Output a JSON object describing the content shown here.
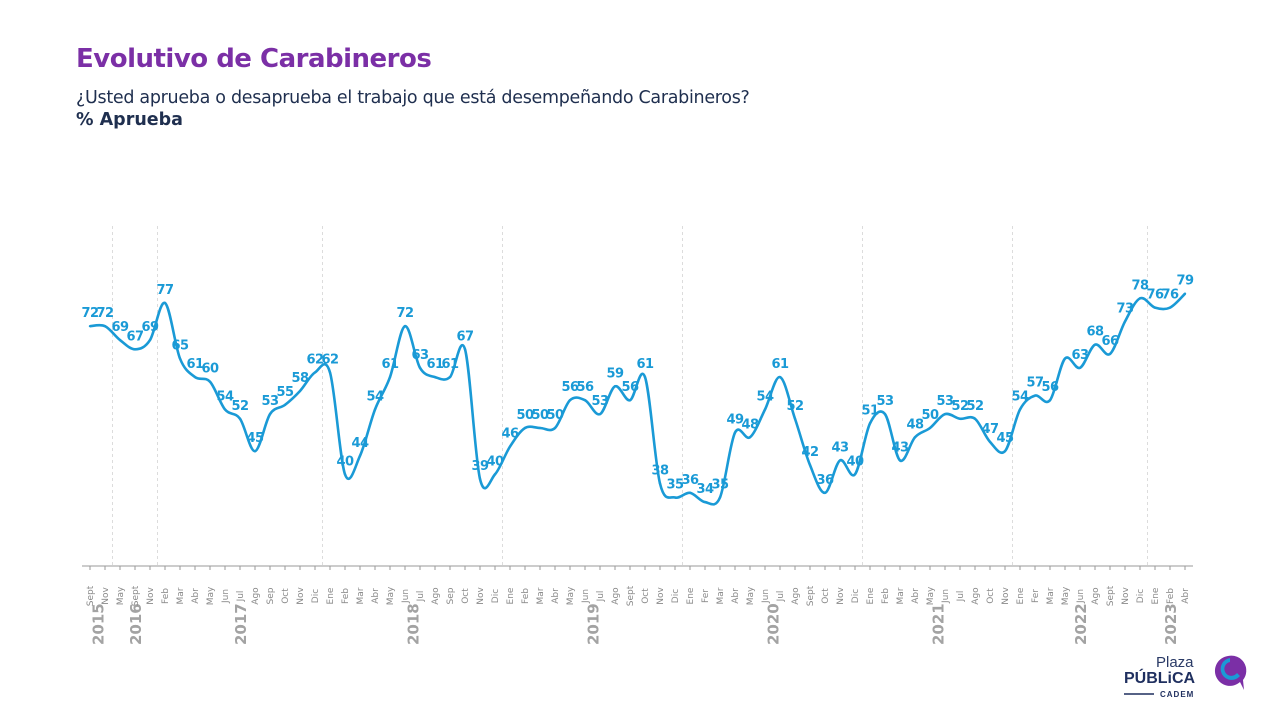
{
  "header": {
    "title": "Evolutivo de Carabineros",
    "subtitle": "¿Usted aprueba o desaprueba el trabajo que está desempeñando Carabineros?",
    "measure": "% Aprueba"
  },
  "chart_data": {
    "type": "line",
    "title": "Evolutivo de Carabineros",
    "ylabel": "% Aprueba",
    "grid": false,
    "legend": "none",
    "color": "#1a9ad6",
    "years": [
      {
        "label": "2015",
        "months": [
          "Sept",
          "Nov"
        ]
      },
      {
        "label": "2016",
        "months": [
          "May",
          "Sept",
          "Nov"
        ]
      },
      {
        "label": "2017",
        "months": [
          "Feb",
          "Mar",
          "Abr",
          "May",
          "Jun",
          "Jul",
          "Ago",
          "Sep",
          "Oct",
          "Nov",
          "Dic"
        ]
      },
      {
        "label": "2018",
        "months": [
          "Ene",
          "Feb",
          "Mar",
          "Abr",
          "May",
          "Jun",
          "Jul",
          "Ago",
          "Sep",
          "Oct",
          "Nov",
          "Dic"
        ]
      },
      {
        "label": "2019",
        "months": [
          "Ene",
          "Feb",
          "Mar",
          "Abr",
          "May",
          "Jun",
          "Jul",
          "Ago",
          "Sept",
          "Oct",
          "Nov",
          "Dic"
        ]
      },
      {
        "label": "2020",
        "months": [
          "Ene",
          "Fer",
          "Mar",
          "Abr",
          "May",
          "Jun",
          "Jul",
          "Ago",
          "Sept",
          "Oct",
          "Nov",
          "Dic"
        ]
      },
      {
        "label": "2021",
        "months": [
          "Ene",
          "Feb",
          "Mar",
          "Abr",
          "May",
          "Jun",
          "Jul",
          "Ago",
          "Oct",
          "Nov"
        ]
      },
      {
        "label": "2022",
        "months": [
          "Ene",
          "Fer",
          "Mar",
          "May",
          "Jun",
          "Ago",
          "Sept",
          "Nov",
          "Dic"
        ]
      },
      {
        "label": "2023",
        "months": [
          "Ene",
          "Feb",
          "Abr"
        ]
      }
    ],
    "values": [
      72,
      72,
      69,
      67,
      69,
      77,
      65,
      61,
      60,
      54,
      52,
      45,
      53,
      55,
      58,
      62,
      62,
      40,
      44,
      54,
      61,
      72,
      63,
      61,
      61,
      67,
      39,
      40,
      46,
      50,
      50,
      50,
      56,
      56,
      53,
      59,
      56,
      61,
      38,
      35,
      36,
      34,
      35,
      49,
      48,
      54,
      61,
      52,
      42,
      36,
      43,
      40,
      51,
      53,
      43,
      48,
      50,
      53,
      52,
      52,
      47,
      45,
      54,
      57,
      56,
      65,
      63,
      68,
      66,
      73,
      78,
      76,
      76,
      79
    ],
    "unlabeled_points": [
      {
        "year": "2022",
        "month": "May"
      }
    ],
    "ylim": [
      30,
      85
    ]
  },
  "logo": {
    "line1": "Plaza",
    "line2": "PÚBLiCA",
    "line3": "CADEM"
  }
}
